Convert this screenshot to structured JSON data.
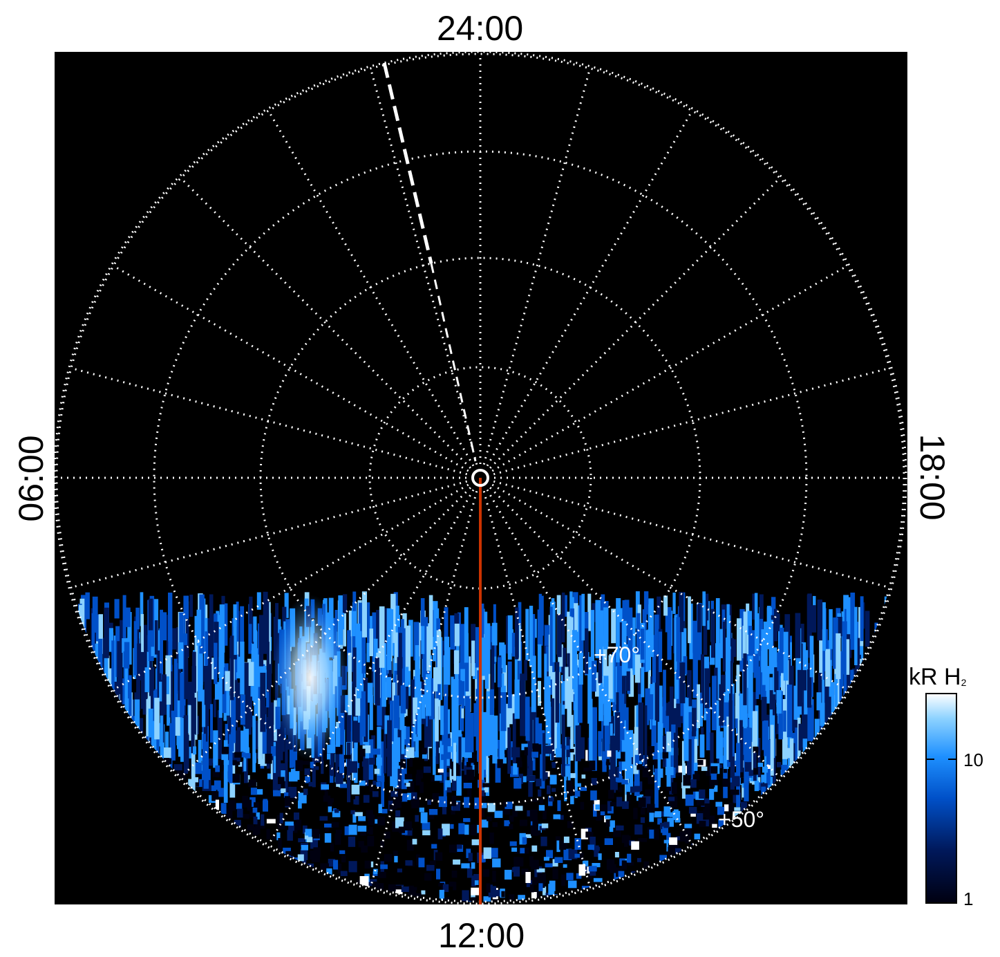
{
  "time_labels": {
    "top": "24:00",
    "bottom": "12:00",
    "left": "06:00",
    "right": "18:00"
  },
  "latitude_labels": {
    "inner": "+70°",
    "outer": "+50°"
  },
  "colorbar": {
    "title": "kR H",
    "title_subscript": "2",
    "scale": "log",
    "ticks": [
      "10",
      "1"
    ],
    "colors": [
      "#000010",
      "#00185a",
      "#0050c8",
      "#1e90ff",
      "#8cd2ff",
      "#ffffff"
    ]
  },
  "grid": {
    "style": "dotted",
    "color": "#ffffff"
  },
  "meridian_line_color": "#cc3300",
  "background": "#000000"
}
